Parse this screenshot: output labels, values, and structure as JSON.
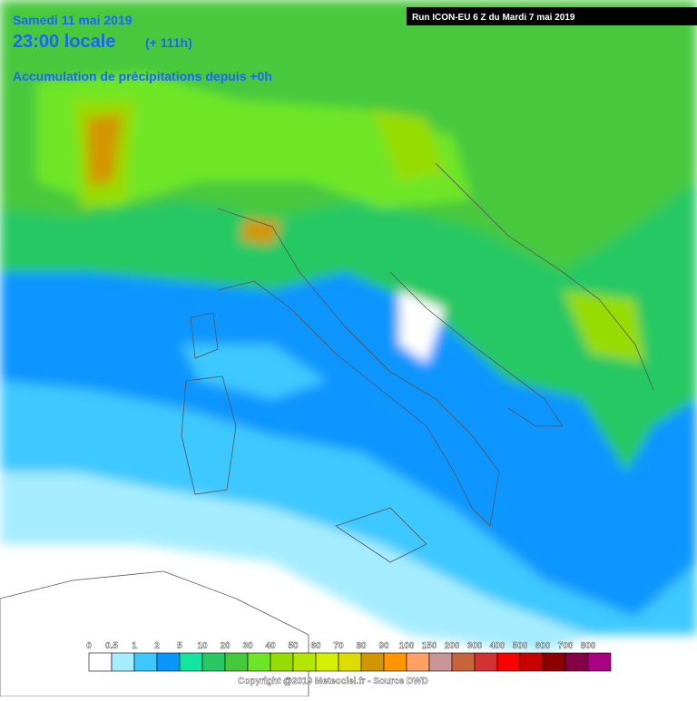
{
  "header": {
    "date": "Samedi 11 mai 2019",
    "time": "23:00 locale",
    "lead": "(+ 111h)",
    "subtitle": "Accumulation de précipitations depuis +0h",
    "run": "Run ICON-EU 6 Z du Mardi 7 mai 2019"
  },
  "legend": {
    "items": [
      {
        "label": "0",
        "color": "#ffffff"
      },
      {
        "label": "0.5",
        "color": "#a6ecff"
      },
      {
        "label": "1",
        "color": "#3cc8ff"
      },
      {
        "label": "2",
        "color": "#0a96ff"
      },
      {
        "label": "5",
        "color": "#14e6a0"
      },
      {
        "label": "10",
        "color": "#28c864"
      },
      {
        "label": "20",
        "color": "#46c83c"
      },
      {
        "label": "30",
        "color": "#6ee628"
      },
      {
        "label": "40",
        "color": "#96dc00"
      },
      {
        "label": "50",
        "color": "#b4e600"
      },
      {
        "label": "60",
        "color": "#d2f000"
      },
      {
        "label": "70",
        "color": "#dcdc00"
      },
      {
        "label": "80",
        "color": "#d29600"
      },
      {
        "label": "90",
        "color": "#ff9600"
      },
      {
        "label": "100",
        "color": "#ffa064"
      },
      {
        "label": "150",
        "color": "#c89696"
      },
      {
        "label": "200",
        "color": "#c8643c"
      },
      {
        "label": "300",
        "color": "#d23232"
      },
      {
        "label": "400",
        "color": "#ff0000"
      },
      {
        "label": "500",
        "color": "#c80000"
      },
      {
        "label": "600",
        "color": "#8c0000"
      },
      {
        "label": "700",
        "color": "#820046"
      },
      {
        "label": "800",
        "color": "#aa0082"
      }
    ]
  },
  "footer": "Copyright @2019 Meteociel.fr - Source DWD"
}
